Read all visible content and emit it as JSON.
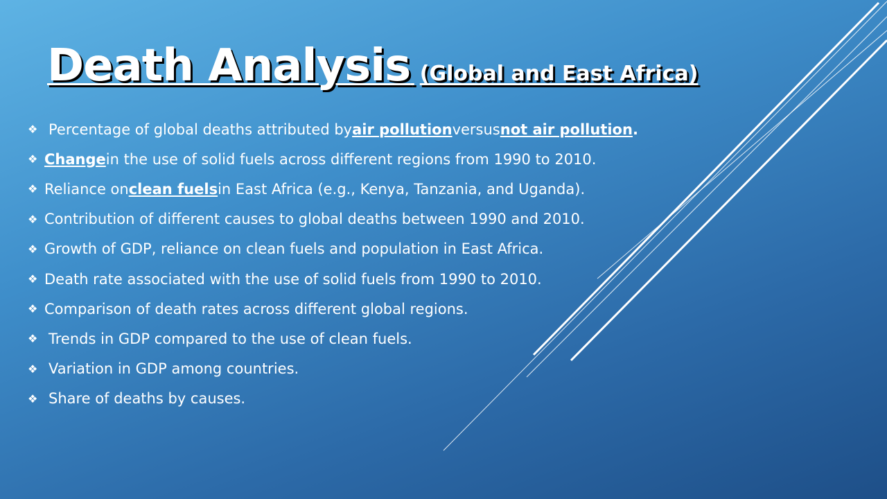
{
  "title": {
    "main": "Death Analysis",
    "sub": "(Global and East Africa)"
  },
  "bullet_icon": "diamond-bullet-icon",
  "bullets": [
    {
      "prefix": "Percentage of global deaths attributed by ",
      "em1": "air pollution ",
      "mid": "versus ",
      "em2": "not air pollution",
      "suffix": "."
    },
    {
      "em1": "Change",
      "suffix": " in the use of solid fuels across different regions from 1990 to 2010."
    },
    {
      "prefix": "Reliance on ",
      "em1": "clean fuels",
      "suffix": " in East Africa (e.g., Kenya, Tanzania, and Uganda)."
    },
    {
      "text": "Contribution of different causes to global deaths between 1990 and 2010."
    },
    {
      "text": "Growth of GDP, reliance on clean fuels and population in East Africa."
    },
    {
      "text": "Death rate associated with the use of solid fuels from 1990 to 2010."
    },
    {
      "text": "Comparison of death rates across different global regions."
    },
    {
      "text": "Trends in GDP compared to the use of clean fuels."
    },
    {
      "text": "Variation in GDP among countries."
    },
    {
      "text": "Share of deaths by causes."
    }
  ]
}
